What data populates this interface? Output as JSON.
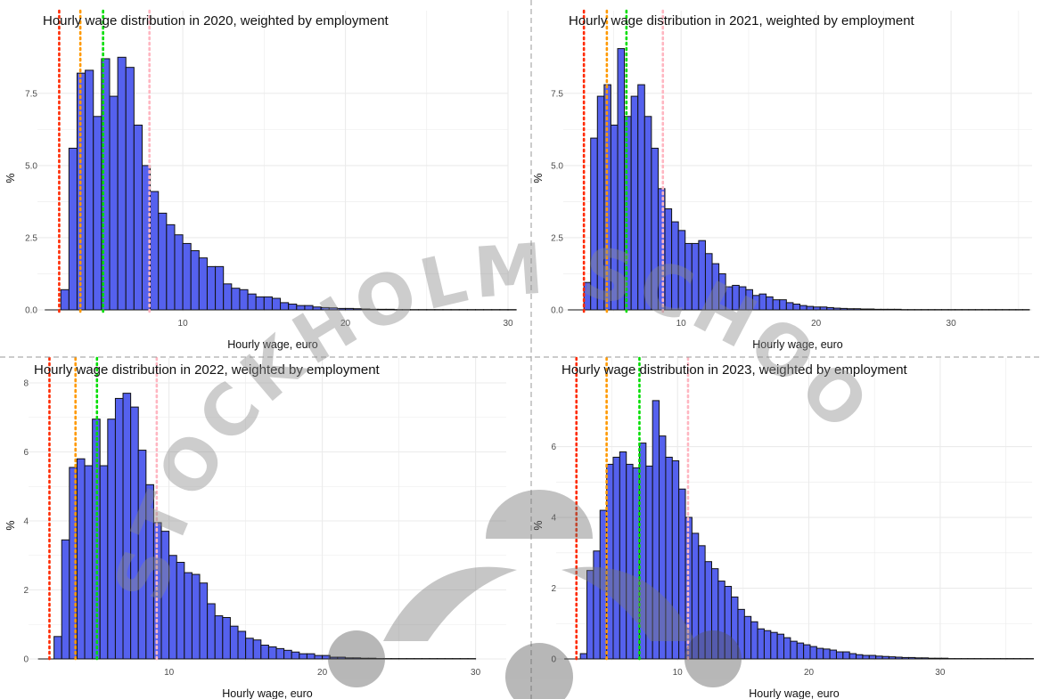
{
  "chart_data": [
    {
      "type": "bar",
      "title": "Hourly wage distribution in 2020, weighted by employment",
      "xlabel": "Hourly wage, euro",
      "ylabel": "%",
      "xlim": [
        1.5,
        30
      ],
      "ylim": [
        0,
        9.5
      ],
      "xticks": [
        10,
        20,
        30
      ],
      "yticks": [
        0,
        2.5,
        5,
        7.5
      ],
      "ytick_labels": [
        "0.0",
        "2.5",
        "5.0",
        "7.5"
      ],
      "bin_start": 2.5,
      "bin_width": 0.5,
      "values": [
        0.7,
        5.6,
        8.2,
        8.3,
        6.7,
        8.7,
        7.4,
        8.75,
        8.4,
        6.4,
        5.0,
        4.1,
        3.35,
        2.95,
        2.6,
        2.3,
        2.05,
        1.8,
        1.5,
        1.5,
        0.9,
        0.75,
        0.7,
        0.55,
        0.45,
        0.45,
        0.4,
        0.25,
        0.2,
        0.15,
        0.15,
        0.1,
        0.08,
        0.07,
        0.05,
        0.05,
        0.04,
        0.03,
        0.02,
        0.02,
        0.02,
        0.01,
        0.01,
        0.01,
        0.01,
        0.01,
        0.01,
        0.01,
        0.01,
        0.01,
        0.01,
        0.01,
        0.01,
        0.01,
        0.01,
        0.01
      ],
      "vlines": [
        {
          "x": 2.4,
          "color": "#ff2a00"
        },
        {
          "x": 3.7,
          "color": "#ff9900"
        },
        {
          "x": 5.1,
          "color": "#00dd00"
        },
        {
          "x": 7.95,
          "color": "#ffb6c1"
        }
      ],
      "grid": true
    },
    {
      "type": "bar",
      "title": "Hourly wage distribution in 2021, weighted by employment",
      "xlabel": "Hourly wage, euro",
      "ylabel": "%",
      "xlim": [
        1.8,
        36
      ],
      "ylim": [
        0,
        9.5
      ],
      "xticks": [
        10,
        20,
        30
      ],
      "yticks": [
        0,
        2.5,
        5,
        7.5
      ],
      "ytick_labels": [
        "0.0",
        "2.5",
        "5.0",
        "7.5"
      ],
      "bin_start": 2.8,
      "bin_width": 0.5,
      "values": [
        0.95,
        5.95,
        7.4,
        7.8,
        6.4,
        9.05,
        6.7,
        7.4,
        7.8,
        6.7,
        5.6,
        4.2,
        3.5,
        3.05,
        2.75,
        2.3,
        2.3,
        2.4,
        1.95,
        1.6,
        1.25,
        0.8,
        0.85,
        0.8,
        0.7,
        0.5,
        0.55,
        0.45,
        0.35,
        0.35,
        0.25,
        0.2,
        0.15,
        0.12,
        0.1,
        0.1,
        0.08,
        0.06,
        0.05,
        0.04,
        0.04,
        0.03,
        0.03,
        0.02,
        0.02,
        0.02,
        0.02,
        0.01,
        0.01,
        0.01,
        0.01,
        0.01,
        0.01,
        0.01,
        0.01,
        0.01,
        0.01,
        0.01,
        0.01,
        0.01,
        0.01,
        0.01,
        0.01,
        0.01,
        0.01,
        0.01
      ],
      "vlines": [
        {
          "x": 2.8,
          "color": "#ff2a00"
        },
        {
          "x": 4.5,
          "color": "#ff9900"
        },
        {
          "x": 5.95,
          "color": "#00dd00"
        },
        {
          "x": 8.65,
          "color": "#ffb6c1"
        }
      ],
      "grid": true
    },
    {
      "type": "bar",
      "title": "Hourly wage distribution in 2022, weighted by employment",
      "xlabel": "Hourly wage, euro",
      "ylabel": "%",
      "xlim": [
        1.3,
        32
      ],
      "ylim": [
        0,
        8
      ],
      "xticks": [
        10,
        20,
        30
      ],
      "yticks": [
        0,
        2,
        4,
        6,
        8
      ],
      "ytick_labels": [
        "0",
        "2",
        "4",
        "6",
        "8"
      ],
      "bin_start": 2.5,
      "bin_width": 0.5,
      "values": [
        0.65,
        3.45,
        5.55,
        5.8,
        5.6,
        6.95,
        5.6,
        6.95,
        7.55,
        7.7,
        7.3,
        6.05,
        5.05,
        3.95,
        3.7,
        3.0,
        2.8,
        2.5,
        2.45,
        2.2,
        1.6,
        1.25,
        1.2,
        0.95,
        0.8,
        0.6,
        0.55,
        0.4,
        0.35,
        0.3,
        0.25,
        0.2,
        0.15,
        0.15,
        0.1,
        0.1,
        0.05,
        0.05,
        0.03,
        0.03,
        0.02,
        0.02,
        0.01,
        0.01,
        0.01,
        0.01,
        0.01,
        0.01,
        0.01,
        0.01,
        0.01,
        0.01,
        0.01,
        0.01,
        0.01
      ],
      "vlines": [
        {
          "x": 2.2,
          "color": "#ff2a00"
        },
        {
          "x": 3.9,
          "color": "#ff9900"
        },
        {
          "x": 5.3,
          "color": "#00dd00"
        },
        {
          "x": 9.2,
          "color": "#ffb6c1"
        }
      ],
      "grid": true
    },
    {
      "type": "bar",
      "title": "Hourly wage distribution in 2023, weighted by employment",
      "xlabel": "Hourly wage, euro",
      "ylabel": "%",
      "xlim": [
        1.3,
        37
      ],
      "ylim": [
        0,
        7.8
      ],
      "xticks": [
        10,
        20,
        30
      ],
      "yticks": [
        0,
        2,
        4,
        6
      ],
      "ytick_labels": [
        "0",
        "2",
        "4",
        "6"
      ],
      "bin_start": 2.6,
      "bin_width": 0.5,
      "values": [
        0.15,
        2.5,
        3.05,
        4.2,
        5.5,
        5.7,
        5.85,
        5.5,
        5.4,
        6.1,
        5.45,
        7.3,
        6.3,
        5.7,
        5.6,
        4.8,
        4.0,
        3.55,
        3.2,
        2.75,
        2.55,
        2.2,
        2.05,
        1.75,
        1.4,
        1.2,
        1.05,
        0.85,
        0.8,
        0.75,
        0.7,
        0.6,
        0.5,
        0.45,
        0.4,
        0.35,
        0.3,
        0.28,
        0.25,
        0.2,
        0.2,
        0.15,
        0.12,
        0.1,
        0.1,
        0.08,
        0.07,
        0.06,
        0.05,
        0.04,
        0.04,
        0.03,
        0.03,
        0.02,
        0.02,
        0.02,
        0.01,
        0.01,
        0.01,
        0.01,
        0.01,
        0.01,
        0.01,
        0.01,
        0.01,
        0.01,
        0.01,
        0.01,
        0.01
      ],
      "vlines": [
        {
          "x": 2.3,
          "color": "#ff2a00"
        },
        {
          "x": 4.6,
          "color": "#ff9900"
        },
        {
          "x": 7.1,
          "color": "#00dd00"
        },
        {
          "x": 10.8,
          "color": "#ffb6c1"
        }
      ],
      "grid": true
    }
  ],
  "style": {
    "bar_fill": "#5561ee",
    "bar_stroke": "#111111",
    "grid_color": "#ebebeb",
    "divider_color": "#999999"
  },
  "watermark": {
    "arc_text": "STOCKHOLM SCHOO",
    "color": "#8a8a8a"
  }
}
